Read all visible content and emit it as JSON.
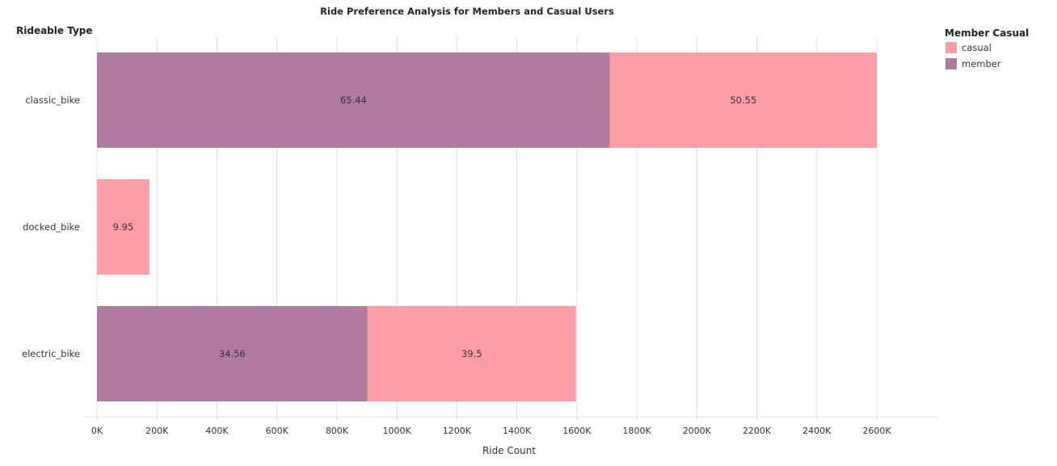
{
  "chart_data": {
    "type": "bar",
    "orientation": "horizontal",
    "stacked": true,
    "title": "Ride Preference Analysis for Members and Casual Users",
    "xlabel": "Ride Count",
    "ylabel": "Rideable Type",
    "categories": [
      "classic_bike",
      "docked_bike",
      "electric_bike"
    ],
    "series": [
      {
        "name": "member",
        "color": "#b07aa1",
        "values": [
          1710000,
          0,
          902000
        ],
        "labels": [
          "65.44",
          "",
          "34.56"
        ]
      },
      {
        "name": "casual",
        "color": "#ff9da7",
        "values": [
          890000,
          175000,
          695000
        ],
        "labels": [
          "50.55",
          "9.95",
          "39.5"
        ]
      }
    ],
    "xlim": [
      0,
      2600000
    ],
    "xticks": [
      0,
      200000,
      400000,
      600000,
      800000,
      1000000,
      1200000,
      1400000,
      1600000,
      1800000,
      2000000,
      2200000,
      2400000,
      2600000
    ],
    "xtick_labels": [
      "0K",
      "200K",
      "400K",
      "600K",
      "800K",
      "1000K",
      "1200K",
      "1400K",
      "1600K",
      "1800K",
      "2000K",
      "2200K",
      "2400K",
      "2600K"
    ],
    "grid": true,
    "legend": {
      "title": "Member Casual",
      "placement": "top-right",
      "entries": [
        {
          "name": "casual",
          "color": "#ff9da7"
        },
        {
          "name": "member",
          "color": "#b07aa1"
        }
      ]
    }
  }
}
